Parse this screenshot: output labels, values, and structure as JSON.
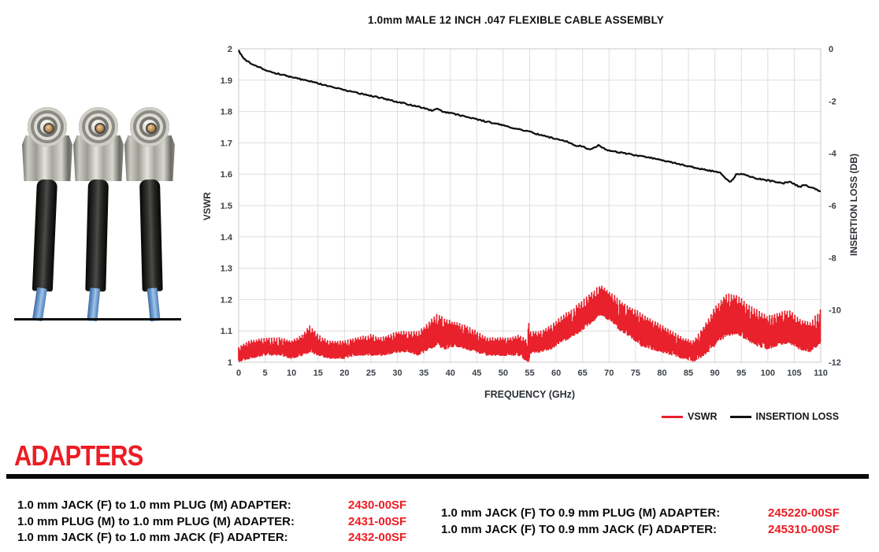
{
  "page": {
    "background": "#ffffff",
    "accent_red": "#ED1C24",
    "rule_color": "#0a0a0a"
  },
  "chart_data": {
    "type": "line",
    "title": "1.0mm MALE 12 INCH .047 FLEXIBLE CABLE ASSEMBLY",
    "xlabel": "FREQUENCY (GHz)",
    "grid": true,
    "legend_position": "bottom-right",
    "x_range": [
      0,
      110
    ],
    "x_ticks": [
      "0",
      "5",
      "10",
      "15",
      "20",
      "25",
      "30",
      "35",
      "40",
      "45",
      "50",
      "55",
      "60",
      "65",
      "70",
      "75",
      "80",
      "85",
      "90",
      "95",
      "100",
      "105",
      "110"
    ],
    "axes": {
      "left": {
        "label": "VSWR",
        "range": [
          1,
          2
        ],
        "ticks": [
          "2",
          "1.9",
          "1.8",
          "1.7",
          "1.6",
          "1.5",
          "1.4",
          "1.3",
          "1.2",
          "1.1",
          "1"
        ]
      },
      "right": {
        "label": "INSERTION LOSS (DB)",
        "range": [
          -12,
          0
        ],
        "ticks": [
          "0",
          "-2",
          "-4",
          "-6",
          "-8",
          "-10",
          "-12"
        ]
      }
    },
    "series": [
      {
        "name": "VSWR",
        "axis": "left",
        "color": "#E8212C",
        "style": "noisy_band",
        "envelope_x": [
          0,
          2,
          5,
          8,
          10,
          12,
          13.5,
          15,
          17,
          20,
          22,
          25,
          27,
          30,
          32,
          34,
          36,
          37.5,
          39,
          41,
          43,
          45,
          47,
          49,
          51,
          53,
          54.6,
          54.9,
          55.1,
          55.4,
          57,
          59,
          61,
          63,
          65,
          67,
          68.5,
          70,
          72,
          74,
          76,
          78,
          80,
          82,
          84,
          86,
          88,
          90,
          92,
          94,
          96,
          98,
          100,
          102,
          104,
          106,
          108,
          110
        ],
        "envelope_low": [
          1.0,
          1.01,
          1.02,
          1.02,
          1.01,
          1.02,
          1.03,
          1.02,
          1.01,
          1.01,
          1.02,
          1.02,
          1.02,
          1.03,
          1.03,
          1.02,
          1.04,
          1.05,
          1.04,
          1.05,
          1.04,
          1.03,
          1.02,
          1.02,
          1.02,
          1.02,
          1.0,
          1.0,
          1.02,
          1.03,
          1.03,
          1.04,
          1.06,
          1.08,
          1.1,
          1.13,
          1.15,
          1.13,
          1.1,
          1.08,
          1.05,
          1.04,
          1.03,
          1.02,
          1.01,
          1.0,
          1.02,
          1.05,
          1.08,
          1.09,
          1.07,
          1.05,
          1.04,
          1.05,
          1.06,
          1.04,
          1.03,
          1.06
        ],
        "envelope_high": [
          1.05,
          1.07,
          1.08,
          1.08,
          1.07,
          1.09,
          1.12,
          1.09,
          1.07,
          1.07,
          1.08,
          1.09,
          1.08,
          1.1,
          1.1,
          1.1,
          1.13,
          1.16,
          1.14,
          1.13,
          1.12,
          1.1,
          1.08,
          1.08,
          1.08,
          1.09,
          1.07,
          1.17,
          1.1,
          1.1,
          1.1,
          1.12,
          1.15,
          1.17,
          1.2,
          1.23,
          1.25,
          1.23,
          1.2,
          1.18,
          1.16,
          1.14,
          1.12,
          1.1,
          1.08,
          1.07,
          1.12,
          1.18,
          1.22,
          1.22,
          1.19,
          1.17,
          1.15,
          1.16,
          1.17,
          1.14,
          1.13,
          1.17
        ]
      },
      {
        "name": "INSERTION LOSS",
        "axis": "right",
        "color": "#111111",
        "style": "line",
        "x": [
          0,
          0.4,
          1,
          2,
          3,
          4,
          5,
          7,
          9,
          11,
          13,
          15,
          18,
          20,
          23,
          25,
          28,
          30,
          33,
          35,
          36.5,
          37.5,
          38.5,
          40,
          43,
          45,
          48,
          50,
          53,
          55,
          57,
          60,
          62,
          63.5,
          65,
          66,
          67,
          68,
          69,
          70,
          73,
          75,
          78,
          80,
          83,
          85,
          88,
          90,
          91,
          92,
          93,
          94,
          95,
          97,
          99,
          101,
          103,
          104,
          106,
          107,
          108,
          110
        ],
        "y": [
          -0.05,
          -0.22,
          -0.38,
          -0.52,
          -0.63,
          -0.72,
          -0.8,
          -0.93,
          -1.03,
          -1.13,
          -1.22,
          -1.33,
          -1.48,
          -1.58,
          -1.71,
          -1.8,
          -1.93,
          -2.03,
          -2.17,
          -2.26,
          -2.36,
          -2.3,
          -2.4,
          -2.46,
          -2.6,
          -2.7,
          -2.84,
          -2.93,
          -3.09,
          -3.18,
          -3.3,
          -3.45,
          -3.55,
          -3.7,
          -3.72,
          -3.85,
          -3.8,
          -3.7,
          -3.8,
          -3.9,
          -4.0,
          -4.08,
          -4.18,
          -4.28,
          -4.4,
          -4.5,
          -4.62,
          -4.7,
          -4.72,
          -4.95,
          -5.1,
          -4.82,
          -4.78,
          -4.92,
          -5.0,
          -5.08,
          -5.15,
          -5.08,
          -5.28,
          -5.22,
          -5.3,
          -5.45
        ]
      }
    ]
  },
  "adapters": {
    "heading": "ADAPTERS",
    "columns": [
      {
        "rows": [
          {
            "label": "1.0 mm JACK (F) to 1.0 mm PLUG (M) ADAPTER:",
            "part": "2430-00SF"
          },
          {
            "label": "1.0 mm PLUG (M) to 1.0 mm PLUG (M) ADAPTER:",
            "part": "2431-00SF"
          },
          {
            "label": "1.0 mm JACK (F) to 1.0 mm JACK (F) ADAPTER:",
            "part": "2432-00SF"
          }
        ]
      },
      {
        "rows": [
          {
            "label": "1.0 mm JACK (F) TO 0.9 mm PLUG (M) ADAPTER:",
            "part": "245220-00SF"
          },
          {
            "label": "1.0 mm JACK (F) TO 0.9 mm JACK (F) ADAPTER:",
            "part": "245310-00SF"
          }
        ]
      }
    ]
  }
}
